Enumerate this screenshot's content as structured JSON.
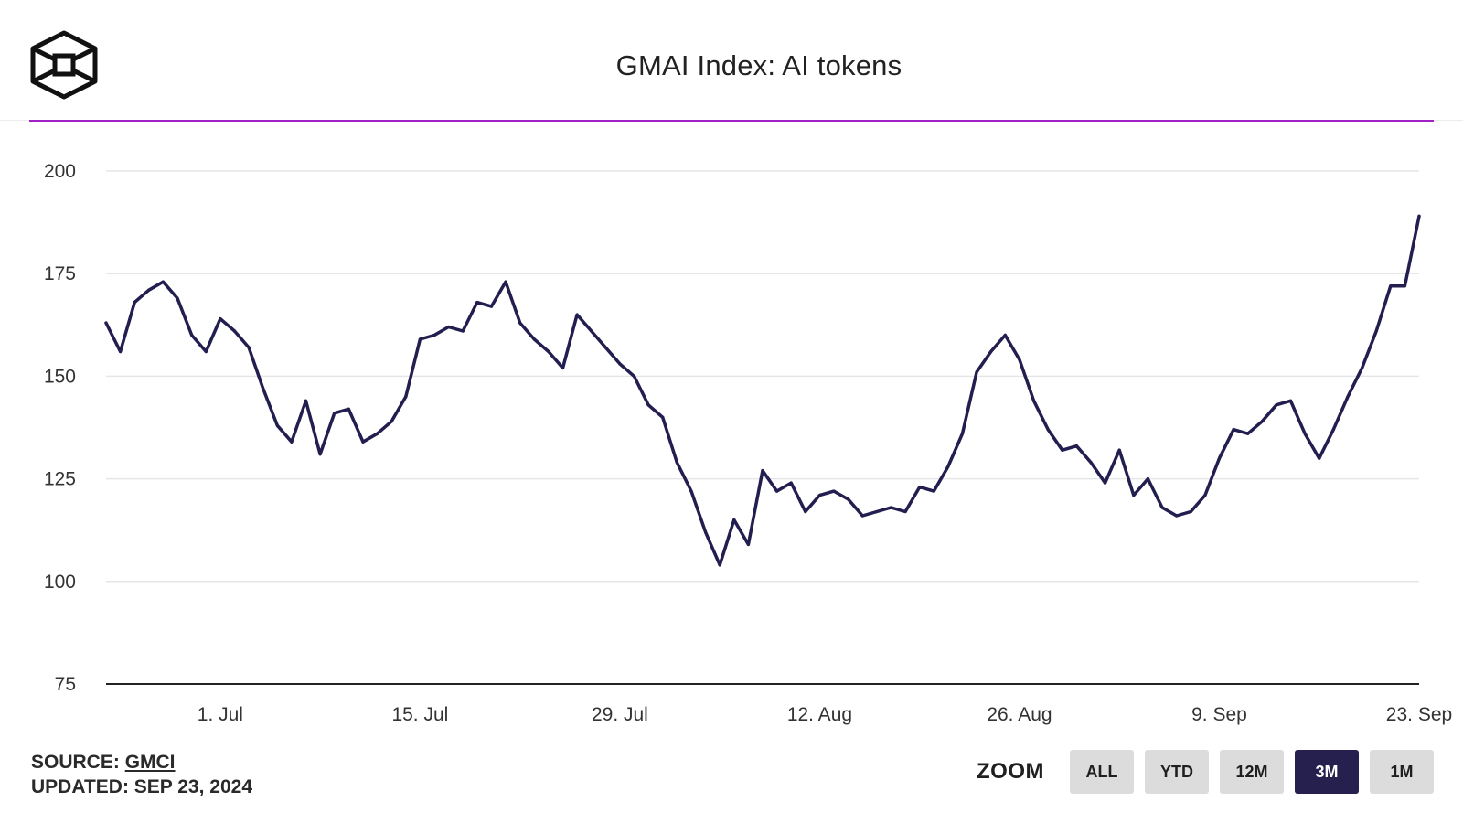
{
  "header": {
    "title": "GMAI Index: AI tokens"
  },
  "footer": {
    "source_label": "SOURCE: ",
    "source_link": "GMCI",
    "updated": "UPDATED: SEP 23, 2024"
  },
  "zoom": {
    "label": "ZOOM",
    "buttons": [
      "ALL",
      "YTD",
      "12M",
      "3M",
      "1M"
    ],
    "active": "3M"
  },
  "colors": {
    "line": "#221e4f",
    "accent": "#a322c8",
    "active_button": "#25204e",
    "grid": "#e6e6e6"
  },
  "chart_data": {
    "type": "line",
    "title": "GMAI Index: AI tokens",
    "xlabel": "",
    "ylabel": "",
    "ylim": [
      75,
      200
    ],
    "yticks": [
      75,
      100,
      125,
      150,
      175,
      200
    ],
    "xlim": [
      "2024-06-23",
      "2024-09-23"
    ],
    "xticks": [
      {
        "label": "1. Jul",
        "date": "2024-07-01"
      },
      {
        "label": "15. Jul",
        "date": "2024-07-15"
      },
      {
        "label": "29. Jul",
        "date": "2024-07-29"
      },
      {
        "label": "12. Aug",
        "date": "2024-08-12"
      },
      {
        "label": "26. Aug",
        "date": "2024-08-26"
      },
      {
        "label": "9. Sep",
        "date": "2024-09-09"
      },
      {
        "label": "23. Sep",
        "date": "2024-09-23"
      }
    ],
    "grid": true,
    "legend": "none",
    "series": [
      {
        "x": [
          "2024-06-23",
          "2024-06-24",
          "2024-06-25",
          "2024-06-26",
          "2024-06-27",
          "2024-06-28",
          "2024-06-29",
          "2024-06-30",
          "2024-07-01",
          "2024-07-02",
          "2024-07-03",
          "2024-07-04",
          "2024-07-05",
          "2024-07-06",
          "2024-07-07",
          "2024-07-08",
          "2024-07-09",
          "2024-07-10",
          "2024-07-11",
          "2024-07-12",
          "2024-07-13",
          "2024-07-14",
          "2024-07-15",
          "2024-07-16",
          "2024-07-17",
          "2024-07-18",
          "2024-07-19",
          "2024-07-20",
          "2024-07-21",
          "2024-07-22",
          "2024-07-23",
          "2024-07-24",
          "2024-07-25",
          "2024-07-26",
          "2024-07-27",
          "2024-07-28",
          "2024-07-29",
          "2024-07-30",
          "2024-07-31",
          "2024-08-01",
          "2024-08-02",
          "2024-08-03",
          "2024-08-04",
          "2024-08-05",
          "2024-08-06",
          "2024-08-07",
          "2024-08-08",
          "2024-08-09",
          "2024-08-10",
          "2024-08-11",
          "2024-08-12",
          "2024-08-13",
          "2024-08-14",
          "2024-08-15",
          "2024-08-16",
          "2024-08-17",
          "2024-08-18",
          "2024-08-19",
          "2024-08-20",
          "2024-08-21",
          "2024-08-22",
          "2024-08-23",
          "2024-08-24",
          "2024-08-25",
          "2024-08-26",
          "2024-08-27",
          "2024-08-28",
          "2024-08-29",
          "2024-08-30",
          "2024-08-31",
          "2024-09-01",
          "2024-09-02",
          "2024-09-03",
          "2024-09-04",
          "2024-09-05",
          "2024-09-06",
          "2024-09-07",
          "2024-09-08",
          "2024-09-09",
          "2024-09-10",
          "2024-09-11",
          "2024-09-12",
          "2024-09-13",
          "2024-09-14",
          "2024-09-15",
          "2024-09-16",
          "2024-09-17",
          "2024-09-18",
          "2024-09-19",
          "2024-09-20",
          "2024-09-21",
          "2024-09-22",
          "2024-09-23"
        ],
        "values": [
          163,
          156,
          168,
          171,
          173,
          169,
          160,
          156,
          164,
          161,
          157,
          147,
          138,
          134,
          144,
          131,
          141,
          142,
          134,
          136,
          139,
          145,
          159,
          160,
          162,
          161,
          168,
          167,
          173,
          163,
          159,
          156,
          152,
          165,
          161,
          157,
          153,
          150,
          143,
          140,
          129,
          122,
          112,
          104,
          115,
          109,
          127,
          122,
          124,
          117,
          121,
          122,
          120,
          116,
          117,
          118,
          117,
          123,
          122,
          128,
          136,
          151,
          156,
          160,
          154,
          144,
          137,
          132,
          133,
          129,
          124,
          132,
          121,
          125,
          118,
          116,
          117,
          121,
          130,
          137,
          136,
          139,
          143,
          144,
          136,
          130,
          137,
          145,
          152,
          161,
          172,
          172,
          189
        ]
      }
    ]
  }
}
